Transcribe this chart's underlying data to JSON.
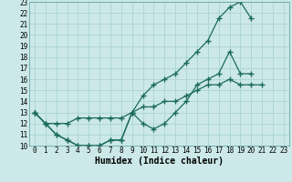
{
  "xlabel": "Humidex (Indice chaleur)",
  "bg_color": "#cce8e8",
  "line_color": "#1a6b5a",
  "grid_color": "#aad4d4",
  "line1_x": [
    0,
    1,
    2,
    3,
    4,
    5,
    6,
    7,
    8,
    9,
    10,
    11,
    12,
    13,
    14,
    15,
    16,
    17,
    18,
    19,
    20,
    21,
    22,
    23
  ],
  "line1_y": [
    13,
    12,
    11,
    10.5,
    10,
    10,
    10,
    10.5,
    10.5,
    13,
    12,
    11.5,
    12,
    13,
    14,
    15.5,
    16,
    16.5,
    18.5,
    16.5,
    16.5,
    null,
    null,
    null
  ],
  "line2_x": [
    0,
    1,
    2,
    3,
    4,
    5,
    6,
    7,
    8,
    9,
    10,
    11,
    12,
    13,
    14,
    15,
    16,
    17,
    18,
    19,
    20,
    21,
    22,
    23
  ],
  "line2_y": [
    13,
    12,
    11,
    10.5,
    10,
    10,
    10,
    10.5,
    10.5,
    13,
    14.5,
    15.5,
    16,
    16.5,
    17.5,
    18.5,
    19.5,
    21.5,
    22.5,
    23,
    21.5,
    null,
    null,
    null
  ],
  "line3_x": [
    0,
    1,
    2,
    3,
    4,
    5,
    6,
    7,
    8,
    9,
    10,
    11,
    12,
    13,
    14,
    15,
    16,
    17,
    18,
    19,
    20,
    21,
    22,
    23
  ],
  "line3_y": [
    13,
    12,
    12,
    12,
    12.5,
    12.5,
    12.5,
    12.5,
    12.5,
    13,
    13.5,
    13.5,
    14,
    14,
    14.5,
    15,
    15.5,
    15.5,
    16,
    15.5,
    15.5,
    15.5,
    null,
    null
  ],
  "xlim": [
    -0.5,
    23.5
  ],
  "ylim": [
    10,
    23
  ],
  "xticks": [
    0,
    1,
    2,
    3,
    4,
    5,
    6,
    7,
    8,
    9,
    10,
    11,
    12,
    13,
    14,
    15,
    16,
    17,
    18,
    19,
    20,
    21,
    22,
    23
  ],
  "yticks": [
    10,
    11,
    12,
    13,
    14,
    15,
    16,
    17,
    18,
    19,
    20,
    21,
    22,
    23
  ],
  "tick_fontsize": 5.5,
  "xlabel_fontsize": 7
}
